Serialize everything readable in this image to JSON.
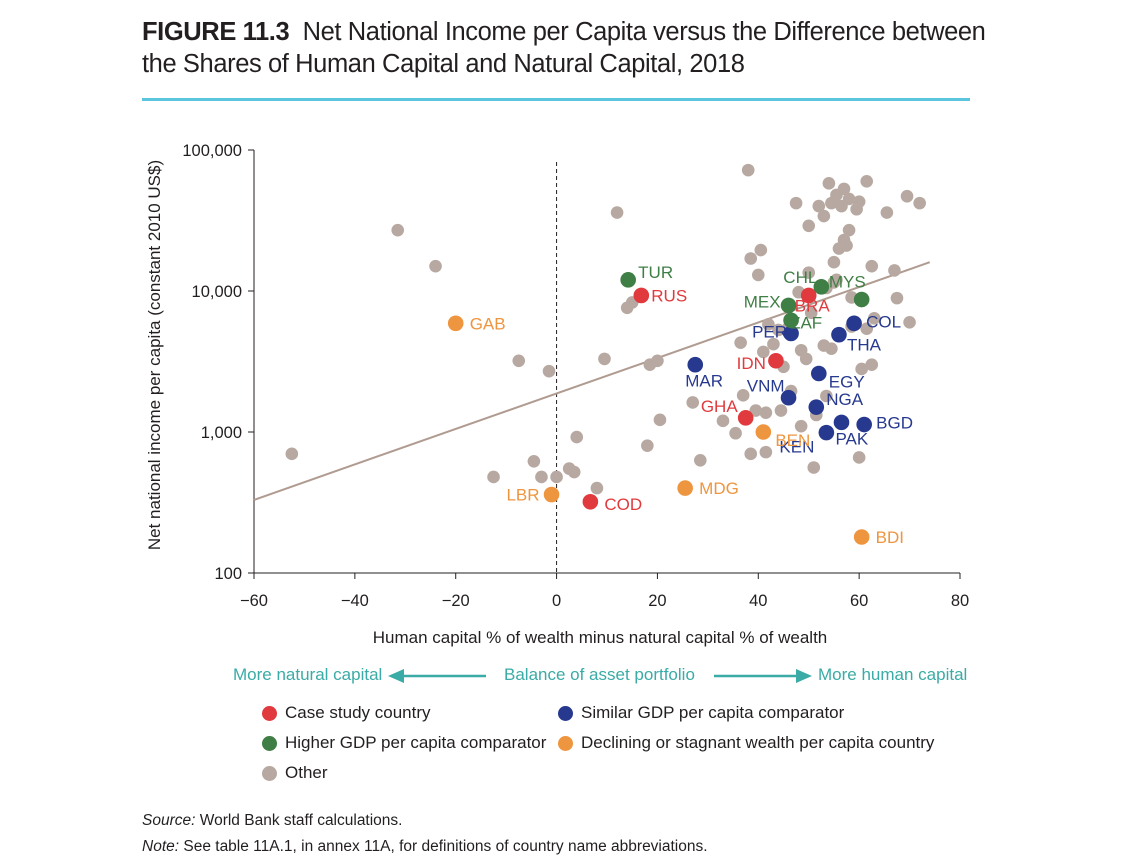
{
  "figure": {
    "number": "FIGURE 11.3",
    "title": "Net National Income per Capita versus the Difference between the Shares of Human Capital and Natural Capital, 2018"
  },
  "colors": {
    "rule": "#5bc5e0",
    "case_study": "#e03a3e",
    "similar": "#27398f",
    "higher": "#3f7e44",
    "declining": "#ee953f",
    "other": "#b7a9a1",
    "trend": "#b09b91",
    "balance": "#3aaba6"
  },
  "chart_data": {
    "type": "scatter",
    "xlabel": "Human capital % of wealth minus natural capital % of wealth",
    "ylabel": "Net national income per capita (constant 2010 US$)",
    "x_scale": "linear",
    "y_scale": "log",
    "xlim": [
      -60,
      80
    ],
    "ylim": [
      100,
      100000
    ],
    "x_ticks": [
      -60,
      -40,
      -20,
      0,
      20,
      40,
      60,
      80
    ],
    "x_tick_labels": [
      "−60",
      "−40",
      "−20",
      "0",
      "20",
      "40",
      "60",
      "80"
    ],
    "y_ticks": [
      100,
      1000,
      10000,
      100000
    ],
    "y_tick_labels": [
      "100",
      "1,000",
      "10,000",
      "100,000"
    ],
    "grid": false,
    "reference_line_x": 0,
    "trend_line": [
      [
        -60,
        330
      ],
      [
        74,
        16000
      ]
    ],
    "series": [
      {
        "name": "Case study country",
        "color": "#e03a3e",
        "points": [
          {
            "label": "RUS",
            "x": 16.8,
            "y": 9300
          },
          {
            "label": "BRA",
            "x": 50,
            "y": 9300
          },
          {
            "label": "IDN",
            "x": 43.5,
            "y": 3200
          },
          {
            "label": "GHA",
            "x": 37.5,
            "y": 1260
          },
          {
            "label": "COD",
            "x": 6.7,
            "y": 320
          }
        ]
      },
      {
        "name": "Similar GDP per capita comparator",
        "color": "#27398f",
        "points": [
          {
            "label": "PER",
            "x": 46.5,
            "y": 5000
          },
          {
            "label": "COL",
            "x": 59,
            "y": 5900
          },
          {
            "label": "THA",
            "x": 56,
            "y": 4900
          },
          {
            "label": "MAR",
            "x": 27.5,
            "y": 3000
          },
          {
            "label": "EGY",
            "x": 52,
            "y": 2600
          },
          {
            "label": "VNM",
            "x": 46,
            "y": 1750
          },
          {
            "label": "NGA",
            "x": 51.5,
            "y": 1500
          },
          {
            "label": "BGD",
            "x": 61,
            "y": 1130
          },
          {
            "label": "PAK",
            "x": 56.5,
            "y": 1170
          },
          {
            "label": "KEN",
            "x": 53.5,
            "y": 990
          }
        ]
      },
      {
        "name": "Higher GDP per capita comparator",
        "color": "#3f7e44",
        "points": [
          {
            "label": "TUR",
            "x": 14.2,
            "y": 12000
          },
          {
            "label": "CHL",
            "x": 52.5,
            "y": 10700
          },
          {
            "label": "MYS",
            "x": 60.5,
            "y": 8700
          },
          {
            "label": "MEX",
            "x": 46,
            "y": 7900
          },
          {
            "label": "ZAF",
            "x": 46.5,
            "y": 6200
          }
        ]
      },
      {
        "name": "Declining or stagnant wealth per capita country",
        "color": "#ee953f",
        "points": [
          {
            "label": "GAB",
            "x": -20,
            "y": 5900
          },
          {
            "label": "LBR",
            "x": -1,
            "y": 360
          },
          {
            "label": "MDG",
            "x": 25.5,
            "y": 400
          },
          {
            "label": "BEN",
            "x": 41,
            "y": 1000
          },
          {
            "label": "BDI",
            "x": 60.5,
            "y": 180
          }
        ]
      },
      {
        "name": "Other",
        "color": "#b7a9a1",
        "points": [
          {
            "x": -52.5,
            "y": 700
          },
          {
            "x": -31.5,
            "y": 27000
          },
          {
            "x": -24,
            "y": 15000
          },
          {
            "x": -12.5,
            "y": 480
          },
          {
            "x": -7.5,
            "y": 3200
          },
          {
            "x": -4.5,
            "y": 620
          },
          {
            "x": -3,
            "y": 480
          },
          {
            "x": -1.5,
            "y": 2700
          },
          {
            "x": 0,
            "y": 480
          },
          {
            "x": 2.5,
            "y": 550
          },
          {
            "x": 3.5,
            "y": 520
          },
          {
            "x": 4,
            "y": 920
          },
          {
            "x": 8,
            "y": 400
          },
          {
            "x": 9.5,
            "y": 3300
          },
          {
            "x": 12,
            "y": 36000
          },
          {
            "x": 14,
            "y": 7600
          },
          {
            "x": 15,
            "y": 8300
          },
          {
            "x": 18.5,
            "y": 3000
          },
          {
            "x": 20,
            "y": 3200
          },
          {
            "x": 20.5,
            "y": 1220
          },
          {
            "x": 18,
            "y": 800
          },
          {
            "x": 27,
            "y": 1620
          },
          {
            "x": 28.5,
            "y": 630
          },
          {
            "x": 33,
            "y": 1200
          },
          {
            "x": 35.5,
            "y": 980
          },
          {
            "x": 36.5,
            "y": 4300
          },
          {
            "x": 37,
            "y": 1820
          },
          {
            "x": 38,
            "y": 72000
          },
          {
            "x": 38.5,
            "y": 17000
          },
          {
            "x": 38.5,
            "y": 700
          },
          {
            "x": 39.5,
            "y": 1420
          },
          {
            "x": 40,
            "y": 13000
          },
          {
            "x": 40.5,
            "y": 19500
          },
          {
            "x": 41,
            "y": 3700
          },
          {
            "x": 41.5,
            "y": 720
          },
          {
            "x": 41.5,
            "y": 1370
          },
          {
            "x": 42,
            "y": 5800
          },
          {
            "x": 43,
            "y": 4200
          },
          {
            "x": 44,
            "y": 5300
          },
          {
            "x": 44.5,
            "y": 1420
          },
          {
            "x": 45,
            "y": 2900
          },
          {
            "x": 46,
            "y": 5500
          },
          {
            "x": 46.5,
            "y": 1950
          },
          {
            "x": 47.5,
            "y": 42000
          },
          {
            "x": 48,
            "y": 9800
          },
          {
            "x": 48.5,
            "y": 3800
          },
          {
            "x": 48.5,
            "y": 1100
          },
          {
            "x": 49.5,
            "y": 3300
          },
          {
            "x": 50,
            "y": 13500
          },
          {
            "x": 50,
            "y": 29000
          },
          {
            "x": 50.5,
            "y": 7000
          },
          {
            "x": 51,
            "y": 560
          },
          {
            "x": 51.5,
            "y": 1320
          },
          {
            "x": 52,
            "y": 40000
          },
          {
            "x": 53,
            "y": 4100
          },
          {
            "x": 53.5,
            "y": 1800
          },
          {
            "x": 53.5,
            "y": 10500
          },
          {
            "x": 54,
            "y": 58000
          },
          {
            "x": 54.5,
            "y": 42000
          },
          {
            "x": 54.5,
            "y": 3900
          },
          {
            "x": 55,
            "y": 16000
          },
          {
            "x": 55.5,
            "y": 12000
          },
          {
            "x": 55.5,
            "y": 48000
          },
          {
            "x": 56,
            "y": 20000
          },
          {
            "x": 56.5,
            "y": 40000
          },
          {
            "x": 57,
            "y": 53000
          },
          {
            "x": 57,
            "y": 23000
          },
          {
            "x": 57.5,
            "y": 21000
          },
          {
            "x": 58,
            "y": 45000
          },
          {
            "x": 58,
            "y": 27000
          },
          {
            "x": 58.5,
            "y": 9000
          },
          {
            "x": 58.5,
            "y": 5600
          },
          {
            "x": 59.5,
            "y": 38000
          },
          {
            "x": 60,
            "y": 43000
          },
          {
            "x": 60,
            "y": 660
          },
          {
            "x": 60.5,
            "y": 2800
          },
          {
            "x": 61.5,
            "y": 5400
          },
          {
            "x": 61.5,
            "y": 60000
          },
          {
            "x": 62.5,
            "y": 3000
          },
          {
            "x": 62.5,
            "y": 15000
          },
          {
            "x": 63,
            "y": 6400
          },
          {
            "x": 65.5,
            "y": 36000
          },
          {
            "x": 67,
            "y": 14000
          },
          {
            "x": 67.5,
            "y": 8900
          },
          {
            "x": 69.5,
            "y": 47000
          },
          {
            "x": 70,
            "y": 6000
          },
          {
            "x": 72,
            "y": 42000
          },
          {
            "x": 55,
            "y": 11500
          },
          {
            "x": 53,
            "y": 34000
          }
        ]
      }
    ]
  },
  "balance": {
    "left": "More natural capital",
    "center": "Balance of asset portfolio",
    "right": "More human capital"
  },
  "legend": {
    "case_study": "Case study country",
    "similar": "Similar GDP per capita comparator",
    "higher": "Higher GDP per capita comparator",
    "declining": "Declining or stagnant wealth per capita country",
    "other": "Other"
  },
  "footnotes": {
    "source_label": "Source:",
    "source_text": "World Bank staff calculations.",
    "note_label": "Note:",
    "note_text": "See table 11A.1, in annex 11A, for definitions of country name abbreviations."
  }
}
